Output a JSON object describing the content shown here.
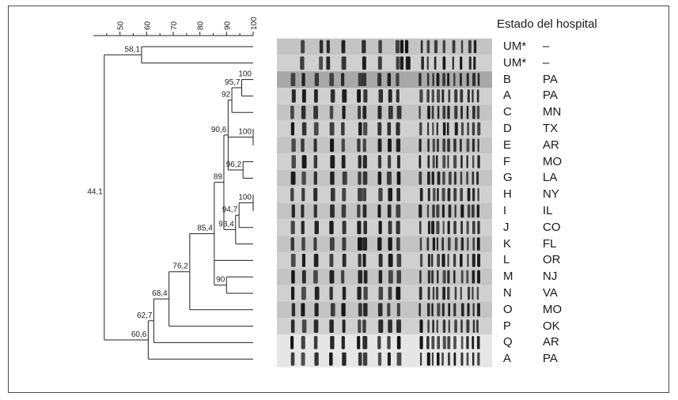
{
  "header": {
    "title": "Estado del hospital"
  },
  "scale": {
    "ticks": [
      50,
      60,
      70,
      80,
      90,
      100
    ],
    "min": 40,
    "max": 100
  },
  "rows": [
    {
      "isolate": "UM*",
      "state": "–"
    },
    {
      "isolate": "UM*",
      "state": "–"
    },
    {
      "isolate": "B",
      "state": "PA"
    },
    {
      "isolate": "A",
      "state": "PA"
    },
    {
      "isolate": "C",
      "state": "MN"
    },
    {
      "isolate": "D",
      "state": "TX"
    },
    {
      "isolate": "E",
      "state": "AR"
    },
    {
      "isolate": "F",
      "state": "MO"
    },
    {
      "isolate": "G",
      "state": "LA"
    },
    {
      "isolate": "H",
      "state": "NY"
    },
    {
      "isolate": "I",
      "state": "IL"
    },
    {
      "isolate": "J",
      "state": "CO"
    },
    {
      "isolate": "K",
      "state": "FL"
    },
    {
      "isolate": "L",
      "state": "OR"
    },
    {
      "isolate": "M",
      "state": "NJ"
    },
    {
      "isolate": "N",
      "state": "VA"
    },
    {
      "isolate": "O",
      "state": "MO"
    },
    {
      "isolate": "P",
      "state": "OK"
    },
    {
      "isolate": "Q",
      "state": "AR"
    },
    {
      "isolate": "A",
      "state": "PA"
    }
  ],
  "dendrogram": {
    "nodes": [
      {
        "id": "n1",
        "sim": 58.1,
        "label": "58,1",
        "children": [
          0,
          1
        ]
      },
      {
        "id": "n2",
        "sim": 95.7,
        "label": "95,7",
        "children": [
          2,
          3
        ]
      },
      {
        "id": "n3",
        "sim": 92,
        "label": "92",
        "children": [
          "n2",
          4
        ]
      },
      {
        "id": "n4",
        "sim": 100,
        "label": "100",
        "children": [
          5,
          6
        ]
      },
      {
        "id": "n5",
        "sim": 96.2,
        "label": "96,2",
        "children": [
          7,
          8
        ]
      },
      {
        "id": "n6",
        "sim": 90.6,
        "label": "90,6",
        "children": [
          "n3",
          "n4",
          "n5"
        ]
      },
      {
        "id": "n7",
        "sim": 100,
        "label": "100",
        "children": [
          9,
          10
        ]
      },
      {
        "id": "n8",
        "sim": 94.7,
        "label": "94,7",
        "children": [
          "n7",
          11
        ]
      },
      {
        "id": "n9",
        "sim": 93.4,
        "label": "93,4",
        "children": [
          "n8",
          12
        ]
      },
      {
        "id": "n10",
        "sim": 89,
        "label": "89",
        "children": [
          "n6",
          "n9"
        ]
      },
      {
        "id": "n11",
        "sim": 90,
        "label": "90",
        "children": [
          14,
          15
        ]
      },
      {
        "id": "n12",
        "sim": 85.4,
        "label": "85,4",
        "children": [
          "n10",
          13,
          "n11"
        ]
      },
      {
        "id": "n13",
        "sim": 76.2,
        "label": "76,2",
        "children": [
          "n12",
          16
        ]
      },
      {
        "id": "n14",
        "sim": 68.4,
        "label": "68,4",
        "children": [
          "n13",
          17
        ]
      },
      {
        "id": "n15",
        "sim": 62.7,
        "label": "62,7",
        "children": [
          "n14",
          18
        ]
      },
      {
        "id": "n16",
        "sim": 60.6,
        "label": "60,6",
        "children": [
          "n15",
          19
        ]
      },
      {
        "id": "n17",
        "sim": 44.1,
        "label": "44,1",
        "children": [
          "n1",
          "n16"
        ]
      }
    ],
    "extra_labels": [
      {
        "label": "100",
        "row": 2
      }
    ]
  }
}
